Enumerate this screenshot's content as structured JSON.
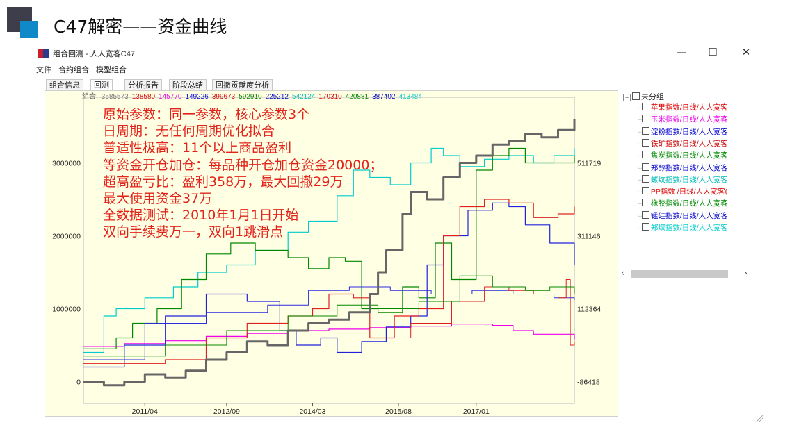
{
  "slide": {
    "title": "C47解密——资金曲线"
  },
  "window": {
    "title": "组合回测 - 人人宽客C47",
    "controls": {
      "minimize": "—",
      "maximize": "☐",
      "close": "✕"
    }
  },
  "menu": {
    "items": [
      "文件",
      "合约组合",
      "模型组合"
    ]
  },
  "tabs": [
    {
      "label": "组合信息",
      "active": false
    },
    {
      "label": "回测",
      "active": true
    },
    {
      "label": "分析报告",
      "active": false
    },
    {
      "label": "阶段总结",
      "active": false
    },
    {
      "label": "回撤贡献度分析",
      "active": false
    }
  ],
  "combo": {
    "label": "组合:",
    "values": [
      {
        "value": "3585573",
        "color": "#777777"
      },
      {
        "value": "138580",
        "color": "#e00000"
      },
      {
        "value": "145770",
        "color": "#ee00ee"
      },
      {
        "value": "149226",
        "color": "#0000dd"
      },
      {
        "value": "399673",
        "color": "#dd0000"
      },
      {
        "value": "592910",
        "color": "#008800"
      },
      {
        "value": "225212",
        "color": "#0000cc"
      },
      {
        "value": "542124",
        "color": "#00bbbb"
      },
      {
        "value": "170310",
        "color": "#dd0000"
      },
      {
        "value": "420881",
        "color": "#008800"
      },
      {
        "value": "387402",
        "color": "#0000cc"
      },
      {
        "value": "413484",
        "color": "#00cccc"
      }
    ]
  },
  "overlay_text": [
    "原始参数：同一参数，核心参数3个",
    "日周期：无任何周期优化拟合",
    "普适性极高：11个以上商品盈利",
    "等资金开仓加仓：每品种开仓加仓资金20000；",
    "超高盈亏比：盈利358万，最大回撤29万",
    "最大使用资金37万",
    "全数据测试：2010年1月1日开始",
    "双向手续费万一，双向1跳滑点"
  ],
  "tree": {
    "root": "未分组",
    "items": [
      {
        "label": "苹果指数/日线/人人宽客",
        "color": "#e00000"
      },
      {
        "label": "玉米指数/日线/人人宽客",
        "color": "#ee00ee"
      },
      {
        "label": "淀粉指数/日线/人人宽客",
        "color": "#0000cc"
      },
      {
        "label": "铁矿指数/日线/人人宽客",
        "color": "#cc0000"
      },
      {
        "label": "焦炭指数/日线/人人宽客",
        "color": "#008800"
      },
      {
        "label": "郑醇指数/日线/人人宽客",
        "color": "#0000cc"
      },
      {
        "label": "螺纹指数/日线/人人宽客",
        "color": "#00bbbb"
      },
      {
        "label": "PP指数 /日线/人人宽客(",
        "color": "#dd0000"
      },
      {
        "label": "橡胶指数/日线/人人宽客",
        "color": "#008800"
      },
      {
        "label": "锰硅指数/日线/人人宽客",
        "color": "#0000cc"
      },
      {
        "label": "郑煤指数/日线/人人宽客",
        "color": "#00cccc"
      }
    ]
  },
  "scrollbar": {
    "left": "‹",
    "right": "›"
  },
  "chart_data": {
    "type": "line",
    "x_range": [
      "2010/01",
      "2018/10"
    ],
    "x_ticks": [
      "2011/04",
      "2012/09",
      "2014/03",
      "2015/08",
      "2017/01"
    ],
    "y_left_ticks": [
      0,
      1000000,
      2000000,
      3000000
    ],
    "y_left_ticks_text": [
      "0",
      "1000000",
      "2000000",
      "3000000"
    ],
    "y_left_range": [
      -300000,
      3900000
    ],
    "y_right_ticks": [
      -86418,
      112364,
      311146,
      511719
    ],
    "y_right_ticks_text": [
      "-86418",
      "112364",
      "311146",
      "511719"
    ],
    "series": [
      {
        "color": "#ee00ee",
        "width": 1.2,
        "values": [
          [
            0,
            480000
          ],
          [
            10,
            520000
          ],
          [
            20,
            560000
          ],
          [
            30,
            620000
          ],
          [
            40,
            660000
          ],
          [
            50,
            700000
          ],
          [
            60,
            720000
          ],
          [
            70,
            740000
          ],
          [
            80,
            760000
          ],
          [
            90,
            790000
          ],
          [
            100,
            770000
          ],
          [
            105,
            700000
          ],
          [
            110,
            650000
          ],
          [
            120,
            580000
          ]
        ]
      },
      {
        "color": "#00cccc",
        "width": 1.2,
        "values": [
          [
            0,
            400000
          ],
          [
            5,
            900000
          ],
          [
            8,
            1000000
          ],
          [
            15,
            1150000
          ],
          [
            22,
            1300000
          ],
          [
            28,
            1500000
          ],
          [
            35,
            1600000
          ],
          [
            42,
            1800000
          ],
          [
            50,
            2050000
          ],
          [
            55,
            2200000
          ],
          [
            62,
            2550000
          ],
          [
            66,
            2900000
          ],
          [
            70,
            2800000
          ],
          [
            75,
            2700000
          ],
          [
            80,
            3000000
          ],
          [
            85,
            3200000
          ],
          [
            88,
            3100000
          ],
          [
            92,
            2950000
          ],
          [
            98,
            3050000
          ],
          [
            104,
            3100000
          ],
          [
            110,
            3000000
          ],
          [
            115,
            3100000
          ],
          [
            120,
            3200000
          ]
        ]
      },
      {
        "color": "#008800",
        "width": 1.2,
        "values": [
          [
            0,
            450000
          ],
          [
            8,
            600000
          ],
          [
            12,
            800000
          ],
          [
            18,
            1000000
          ],
          [
            24,
            1400000
          ],
          [
            30,
            1750000
          ],
          [
            36,
            1900000
          ],
          [
            42,
            1800000
          ],
          [
            50,
            1700000
          ],
          [
            55,
            1550000
          ],
          [
            60,
            1700000
          ],
          [
            64,
            1650000
          ],
          [
            68,
            1000000
          ],
          [
            72,
            950000
          ],
          [
            78,
            1300000
          ],
          [
            82,
            1150000
          ],
          [
            86,
            1900000
          ],
          [
            90,
            1400000
          ],
          [
            96,
            2900000
          ],
          [
            100,
            3100000
          ],
          [
            104,
            3200000
          ],
          [
            108,
            3000000
          ],
          [
            114,
            3000000
          ],
          [
            120,
            3100000
          ]
        ]
      },
      {
        "color": "#2222dd",
        "width": 1.2,
        "values": [
          [
            0,
            200000
          ],
          [
            10,
            500000
          ],
          [
            20,
            900000
          ],
          [
            30,
            1200000
          ],
          [
            40,
            1100000
          ],
          [
            48,
            700000
          ],
          [
            52,
            500000
          ],
          [
            58,
            600000
          ],
          [
            62,
            400000
          ],
          [
            68,
            550000
          ],
          [
            74,
            750000
          ],
          [
            80,
            900000
          ],
          [
            84,
            1600000
          ],
          [
            88,
            2000000
          ],
          [
            94,
            2350000
          ],
          [
            100,
            2450000
          ],
          [
            104,
            2400000
          ],
          [
            108,
            2150000
          ],
          [
            114,
            1900000
          ],
          [
            120,
            1600000
          ]
        ]
      },
      {
        "color": "#2b2be0",
        "width": 1.0,
        "values": [
          [
            0,
            300000
          ],
          [
            15,
            800000
          ],
          [
            30,
            950000
          ],
          [
            45,
            1050000
          ],
          [
            55,
            1250000
          ],
          [
            65,
            1300000
          ],
          [
            75,
            1250000
          ],
          [
            85,
            1200000
          ],
          [
            95,
            1250000
          ],
          [
            105,
            1200000
          ],
          [
            115,
            1150000
          ],
          [
            120,
            1120000
          ]
        ]
      },
      {
        "color": "#e02020",
        "width": 1.2,
        "values": [
          [
            0,
            250000
          ],
          [
            20,
            300000
          ],
          [
            30,
            600000
          ],
          [
            40,
            800000
          ],
          [
            50,
            900000
          ],
          [
            56,
            1000000
          ],
          [
            60,
            1200000
          ],
          [
            66,
            1150000
          ],
          [
            70,
            600000
          ],
          [
            76,
            900000
          ],
          [
            82,
            1000000
          ],
          [
            88,
            2000000
          ],
          [
            92,
            2400000
          ],
          [
            98,
            2500000
          ],
          [
            104,
            2450000
          ],
          [
            110,
            2250000
          ],
          [
            116,
            2300000
          ],
          [
            120,
            2400000
          ]
        ]
      },
      {
        "color": "#e02020",
        "width": 1.0,
        "values": [
          [
            70,
            600000
          ],
          [
            80,
            800000
          ],
          [
            90,
            1100000
          ],
          [
            98,
            1300000
          ],
          [
            104,
            1250000
          ],
          [
            110,
            1200000
          ],
          [
            116,
            1150000
          ],
          [
            118,
            1400000
          ],
          [
            119,
            500000
          ],
          [
            120,
            550000
          ]
        ]
      },
      {
        "color": "#008800",
        "width": 1.0,
        "values": [
          [
            0,
            350000
          ],
          [
            20,
            500000
          ],
          [
            35,
            700000
          ],
          [
            50,
            900000
          ],
          [
            62,
            1050000
          ],
          [
            72,
            1000000
          ],
          [
            82,
            1100000
          ],
          [
            92,
            1450000
          ],
          [
            100,
            1300000
          ],
          [
            108,
            1250000
          ],
          [
            114,
            1300000
          ],
          [
            120,
            1200000
          ]
        ]
      },
      {
        "color": "#666666",
        "width": 3.0,
        "values": [
          [
            0,
            0
          ],
          [
            5,
            -50000
          ],
          [
            10,
            0
          ],
          [
            15,
            100000
          ],
          [
            20,
            50000
          ],
          [
            25,
            150000
          ],
          [
            30,
            300000
          ],
          [
            35,
            400000
          ],
          [
            40,
            550000
          ],
          [
            45,
            500000
          ],
          [
            50,
            700000
          ],
          [
            55,
            800000
          ],
          [
            60,
            850000
          ],
          [
            65,
            950000
          ],
          [
            70,
            1200000
          ],
          [
            72,
            1500000
          ],
          [
            74,
            1800000
          ],
          [
            78,
            2300000
          ],
          [
            80,
            2600000
          ],
          [
            84,
            2500000
          ],
          [
            88,
            2800000
          ],
          [
            92,
            3000000
          ],
          [
            96,
            3100000
          ],
          [
            100,
            3250000
          ],
          [
            104,
            3300000
          ],
          [
            108,
            3400000
          ],
          [
            112,
            3350000
          ],
          [
            116,
            3450000
          ],
          [
            120,
            3600000
          ]
        ]
      }
    ]
  }
}
